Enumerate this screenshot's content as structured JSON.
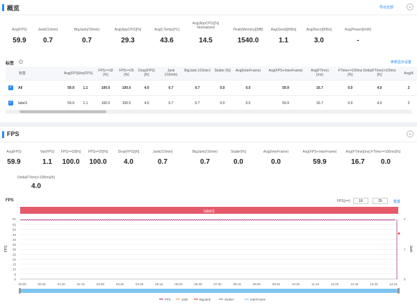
{
  "overview": {
    "title": "概览",
    "export_label": "导出全部",
    "collapse_icon": "chevron-down-icon",
    "metrics": [
      {
        "label": "Avg(FPS)",
        "value": "59.9"
      },
      {
        "label": "Jank(/10min)",
        "value": "0.7"
      },
      {
        "label": "BigJank(/10min)",
        "value": "0.7"
      },
      {
        "label": "Avg(AppCPU)[%]",
        "value": "29.3"
      },
      {
        "label": "Avg(CTemp)[℃]",
        "value": "43.6"
      },
      {
        "label": "Avg(AppCPU)[%] Normalized",
        "value": "14.5"
      },
      {
        "label": "Peak(Memory)[MB]",
        "value": "1540.0"
      },
      {
        "label": "Avg(Send)[KB/s]",
        "value": "1.1"
      },
      {
        "label": "Avg(Recv)[KB/s]",
        "value": "3.0"
      },
      {
        "label": "Avg(Power)[mW]",
        "value": "-"
      }
    ]
  },
  "labels": {
    "title": "标签",
    "settings_label": "参数显示设置",
    "columns": [
      "标签",
      "Avg(FPS)",
      "Var(FPS)",
      "FPS>=18 [%]",
      "FPS>=25 [%]",
      "Drop(FPS) [/h]",
      "Jank (/10min)",
      "BigJank (/10min)",
      "Stutter [%]",
      "Avg(InterFrame)",
      "Avg(FPS+InterFrame)",
      "Avg(FTime) [ms]",
      "FTime>=100ms [%]",
      "Delta(FTime)>100ms [/h]",
      "Avg(A"
    ],
    "rows": [
      {
        "name": "All",
        "cells": [
          "59.9",
          "1.1",
          "100.0",
          "100.0",
          "4.0",
          "0.7",
          "0.7",
          "0.0",
          "0.0",
          "59.9",
          "16.7",
          "0.0",
          "4.0",
          "2"
        ]
      },
      {
        "name": "label1",
        "cells": [
          "59.9",
          "1.1",
          "100.0",
          "100.0",
          "4.0",
          "0.7",
          "0.7",
          "0.0",
          "0.0",
          "59.9",
          "16.7",
          "0.0",
          "4.0",
          "2"
        ]
      }
    ]
  },
  "fps": {
    "title": "FPS",
    "collapse_icon": "chevron-down-icon",
    "metrics": [
      {
        "label": "Avg(FPS)",
        "value": "59.9"
      },
      {
        "label": "Var(FPS)",
        "value": "1.1"
      },
      {
        "label": "FPS>=18[%]",
        "value": "100.0"
      },
      {
        "label": "FPS>=25[%]",
        "value": "100.0"
      },
      {
        "label": "Drop(FPS)[/h]",
        "value": "4.0"
      },
      {
        "label": "Jank(/10min)",
        "value": "0.7"
      },
      {
        "label": "BigJank(/10min)",
        "value": "0.7"
      },
      {
        "label": "Stutter[%]",
        "value": "0.0"
      },
      {
        "label": "Avg(InterFrame)",
        "value": "0.0"
      },
      {
        "label": "Avg(FPS+InterFrame)",
        "value": "59.9"
      },
      {
        "label": "Avg(FTime)[ms]",
        "value": "16.7"
      },
      {
        "label": "FTime>=100ms[%]",
        "value": "0.0"
      },
      {
        "label": "Delta(FTime)>100ms[/h]",
        "value": "4.0"
      }
    ],
    "chart_label": "FPS",
    "threshold_label": "FPS(>=)",
    "threshold1": "18",
    "threshold2": "25",
    "reset_label": "重置"
  },
  "chart_data": {
    "type": "line",
    "title": "FPS",
    "band_label": "label1",
    "ylabel": "FPS",
    "y2label": "Jank",
    "x": [
      "00:00",
      "00:45",
      "01:30",
      "02:15",
      "03:00",
      "03:45",
      "04:30",
      "05:15",
      "06:00",
      "06:45",
      "07:30",
      "08:15",
      "09:00",
      "09:45",
      "10:30",
      "11:15",
      "12:00",
      "12:45",
      "13:30",
      "14:15"
    ],
    "yticks": [
      "61",
      "55",
      "50",
      "45",
      "40",
      "35",
      "30",
      "25",
      "20",
      "15",
      "10",
      "5",
      "0"
    ],
    "y2ticks": [
      "2",
      "1",
      "0"
    ],
    "series": [
      {
        "name": "FPS",
        "color": "#b0378e",
        "value": 60
      },
      {
        "name": "Jank",
        "color": "#f0a24c"
      },
      {
        "name": "BigJank",
        "color": "#e0453a"
      },
      {
        "name": "Stutter",
        "color": "#888888"
      },
      {
        "name": "InterFrame",
        "color": "#7ec6f2"
      }
    ]
  }
}
